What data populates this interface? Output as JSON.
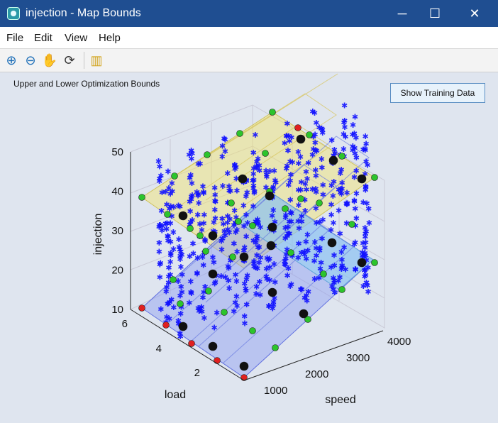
{
  "window": {
    "title": "injection - Map Bounds",
    "controls": [
      "─",
      "☐",
      "✕"
    ]
  },
  "menu": {
    "items": [
      "File",
      "Edit",
      "View",
      "Help"
    ]
  },
  "toolbar": {
    "tools": [
      {
        "icon": "zoom-in-icon",
        "glyph": "⊕"
      },
      {
        "icon": "zoom-out-icon",
        "glyph": "⊖"
      },
      {
        "icon": "pan-hand-icon",
        "glyph": "✋"
      },
      {
        "icon": "rotate-3d-icon",
        "glyph": "⟳"
      },
      {
        "icon": "color-bar-icon",
        "glyph": "▥"
      }
    ]
  },
  "plot": {
    "label": "Upper and Lower Optimization Bounds",
    "show_training_label": "Show Training Data"
  },
  "chart_data": {
    "type": "scatter",
    "title": "",
    "xlabel": "speed",
    "ylabel": "load",
    "zlabel": "injection",
    "x_ticks": [
      1000,
      2000,
      3000,
      4000
    ],
    "y_ticks": [
      2,
      4,
      6
    ],
    "z_ticks": [
      10,
      20,
      30,
      40,
      50
    ],
    "grid": true,
    "surfaces": [
      {
        "name": "upper",
        "color": "#f4e46a",
        "z_range": [
          38,
          51
        ]
      },
      {
        "name": "lower",
        "color": "#8b9bf2",
        "z_range": [
          10,
          34
        ]
      }
    ],
    "marker_colors": {
      "green": "#2cc42c",
      "red": "#e02020",
      "black": "#111111",
      "blue": "#1111ff"
    }
  }
}
